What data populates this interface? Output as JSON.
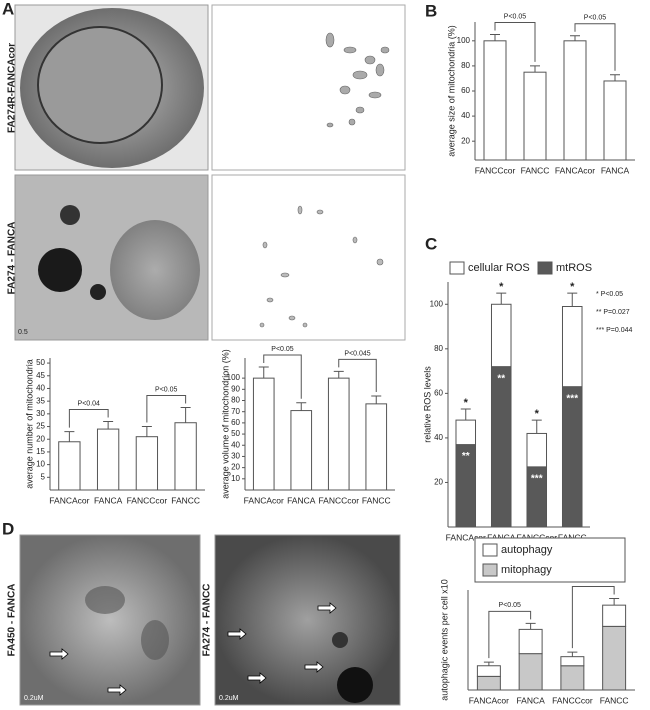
{
  "figure": {
    "panel_labels": [
      "A",
      "B",
      "C",
      "D"
    ],
    "micrograph_labels": [
      "FA274R-FANCAcor",
      "FA274 - FANCA",
      "FA450 - FANCA",
      "FA274 - FANCC"
    ],
    "scale_labels": [
      "0.5",
      "0.2uM",
      "0.2uM"
    ]
  },
  "chart_data": [
    {
      "type": "bar",
      "ylabel": "average number of mitochondria",
      "categories": [
        "FANCAcor",
        "FANCA",
        "FANCCcor",
        "FANCC"
      ],
      "values": [
        19,
        24,
        21,
        26.5
      ],
      "errors": [
        4,
        3,
        4,
        6
      ],
      "color": "#ffffff",
      "ylim": [
        0,
        52
      ],
      "yticks": [
        5,
        10,
        15,
        20,
        25,
        30,
        35,
        40,
        45,
        50
      ],
      "annotations": [
        "P<0.04",
        "P<0.05"
      ]
    },
    {
      "type": "bar",
      "ylabel": "average volume of mitochondrion (%)",
      "categories": [
        "FANCAcor",
        "FANCA",
        "FANCCcor",
        "FANCC"
      ],
      "values": [
        100,
        71,
        100,
        77
      ],
      "errors": [
        10,
        7,
        6,
        7
      ],
      "color": "#ffffff",
      "ylim": [
        0,
        118
      ],
      "yticks": [
        10,
        20,
        30,
        40,
        50,
        60,
        70,
        80,
        90,
        100
      ],
      "annotations": [
        "P<0.05",
        "P<0.045"
      ]
    },
    {
      "type": "bar",
      "ylabel": "average size of mitochondria (%)",
      "categories": [
        "FANCCcor",
        "FANCC",
        "FANCAcor",
        "FANCA"
      ],
      "values": [
        100,
        75,
        100,
        68
      ],
      "errors": [
        5,
        5,
        4,
        5
      ],
      "color": "#ffffff",
      "ylim": [
        5,
        115
      ],
      "yticks": [
        20,
        40,
        60,
        80,
        100
      ],
      "annotations": [
        "P<0.05",
        "P<0.05"
      ]
    },
    {
      "type": "stacked_bar",
      "ylabel": "relative ROS levels",
      "categories": [
        "FANCAcor",
        "FANCA",
        "FANCCcor",
        "FANCC"
      ],
      "series": [
        {
          "name": "mtROS",
          "color": "#595959",
          "values": [
            37,
            72,
            27,
            63
          ]
        },
        {
          "name": "cellular ROS",
          "color": "#ffffff",
          "values": [
            11,
            28,
            15,
            36
          ],
          "errors": [
            5,
            5,
            6,
            6
          ]
        }
      ],
      "ylim": [
        0,
        110
      ],
      "yticks": [
        20,
        40,
        60,
        80,
        100
      ],
      "top_markers": [
        "*",
        "*",
        "*",
        "*"
      ],
      "inner_markers": [
        "**",
        "**",
        "***",
        "***"
      ],
      "notes": [
        "*    P<0.05",
        "**   P=0.027",
        "***  P=0.044"
      ]
    },
    {
      "type": "stacked_bar",
      "ylabel": "autophagic events per cell x10",
      "categories": [
        "FANCAcor",
        "FANCA",
        "FANCCcor",
        "FANCC"
      ],
      "series": [
        {
          "name": "mitophagy",
          "color": "#c8c8c8",
          "values": [
            0.45,
            1.2,
            0.8,
            2.1
          ]
        },
        {
          "name": "autophagy",
          "color": "#ffffff",
          "values": [
            0.35,
            0.8,
            0.3,
            0.7
          ],
          "errors": [
            0.12,
            0.2,
            0.15,
            0.22
          ]
        }
      ],
      "ylim": [
        0,
        3.3
      ],
      "annotations": [
        "P<0.05",
        "P<0.05"
      ]
    }
  ]
}
